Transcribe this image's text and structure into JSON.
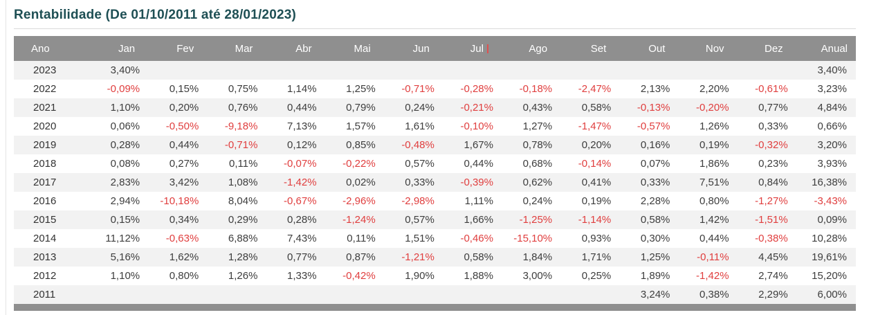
{
  "title": "Rentabilidade (De 01/10/2011 até 28/01/2023)",
  "colors": {
    "title_text": "#1e4f54",
    "header_bg": "#8f8f8f",
    "header_text": "#ffffff",
    "row_alt_bg": "#f2f2f2",
    "positive_text": "#3d3d3d",
    "negative_text": "#e03e3e"
  },
  "table": {
    "columns": [
      "Ano",
      "Jan",
      "Fev",
      "Mar",
      "Abr",
      "Mai",
      "Jun",
      "Jul",
      "Ago",
      "Set",
      "Out",
      "Nov",
      "Dez",
      "Anual"
    ],
    "header_cursor_after_column": "Jul",
    "rows": [
      {
        "year": "2023",
        "values": [
          "3,40%",
          "",
          "",
          "",
          "",
          "",
          "",
          "",
          "",
          "",
          "",
          "",
          "3,40%"
        ]
      },
      {
        "year": "2022",
        "values": [
          "-0,09%",
          "0,15%",
          "0,75%",
          "1,14%",
          "1,25%",
          "-0,71%",
          "-0,28%",
          "-0,18%",
          "-2,47%",
          "2,13%",
          "2,20%",
          "-0,61%",
          "3,23%"
        ]
      },
      {
        "year": "2021",
        "values": [
          "1,10%",
          "0,20%",
          "0,76%",
          "0,44%",
          "0,79%",
          "0,24%",
          "-0,21%",
          "0,43%",
          "0,58%",
          "-0,13%",
          "-0,20%",
          "0,77%",
          "4,84%"
        ]
      },
      {
        "year": "2020",
        "values": [
          "0,06%",
          "-0,50%",
          "-9,18%",
          "7,13%",
          "1,57%",
          "1,61%",
          "-0,10%",
          "1,27%",
          "-1,47%",
          "-0,57%",
          "1,26%",
          "0,33%",
          "0,66%"
        ]
      },
      {
        "year": "2019",
        "values": [
          "0,28%",
          "0,44%",
          "-0,71%",
          "0,12%",
          "0,85%",
          "-0,48%",
          "1,67%",
          "0,78%",
          "0,20%",
          "0,16%",
          "0,19%",
          "-0,32%",
          "3,20%"
        ]
      },
      {
        "year": "2018",
        "values": [
          "0,08%",
          "0,27%",
          "0,11%",
          "-0,07%",
          "-0,22%",
          "0,57%",
          "0,44%",
          "0,68%",
          "-0,14%",
          "0,07%",
          "1,86%",
          "0,23%",
          "3,93%"
        ]
      },
      {
        "year": "2017",
        "values": [
          "2,83%",
          "3,42%",
          "1,08%",
          "-1,42%",
          "0,02%",
          "0,33%",
          "-0,39%",
          "0,62%",
          "0,41%",
          "0,33%",
          "7,51%",
          "0,84%",
          "16,38%"
        ]
      },
      {
        "year": "2016",
        "values": [
          "2,94%",
          "-10,18%",
          "8,04%",
          "-0,67%",
          "-2,96%",
          "-2,98%",
          "1,11%",
          "0,24%",
          "0,19%",
          "2,28%",
          "0,80%",
          "-1,27%",
          "-3,43%"
        ]
      },
      {
        "year": "2015",
        "values": [
          "0,15%",
          "0,34%",
          "0,29%",
          "0,28%",
          "-1,24%",
          "0,57%",
          "1,66%",
          "-1,25%",
          "-1,14%",
          "0,58%",
          "1,42%",
          "-1,51%",
          "0,09%"
        ]
      },
      {
        "year": "2014",
        "values": [
          "11,12%",
          "-0,63%",
          "6,88%",
          "7,43%",
          "0,11%",
          "1,51%",
          "-0,46%",
          "-15,10%",
          "0,93%",
          "0,30%",
          "0,44%",
          "-0,38%",
          "10,28%"
        ]
      },
      {
        "year": "2013",
        "values": [
          "5,16%",
          "1,62%",
          "1,28%",
          "0,77%",
          "0,87%",
          "-1,21%",
          "0,58%",
          "1,84%",
          "1,71%",
          "1,25%",
          "-0,11%",
          "4,45%",
          "19,61%"
        ]
      },
      {
        "year": "2012",
        "values": [
          "1,10%",
          "0,80%",
          "1,26%",
          "1,33%",
          "-0,42%",
          "1,90%",
          "1,88%",
          "3,00%",
          "0,25%",
          "1,89%",
          "-1,42%",
          "2,74%",
          "15,20%"
        ]
      },
      {
        "year": "2011",
        "values": [
          "",
          "",
          "",
          "",
          "",
          "",
          "",
          "",
          "",
          "3,24%",
          "0,38%",
          "2,29%",
          "6,00%"
        ]
      }
    ]
  }
}
